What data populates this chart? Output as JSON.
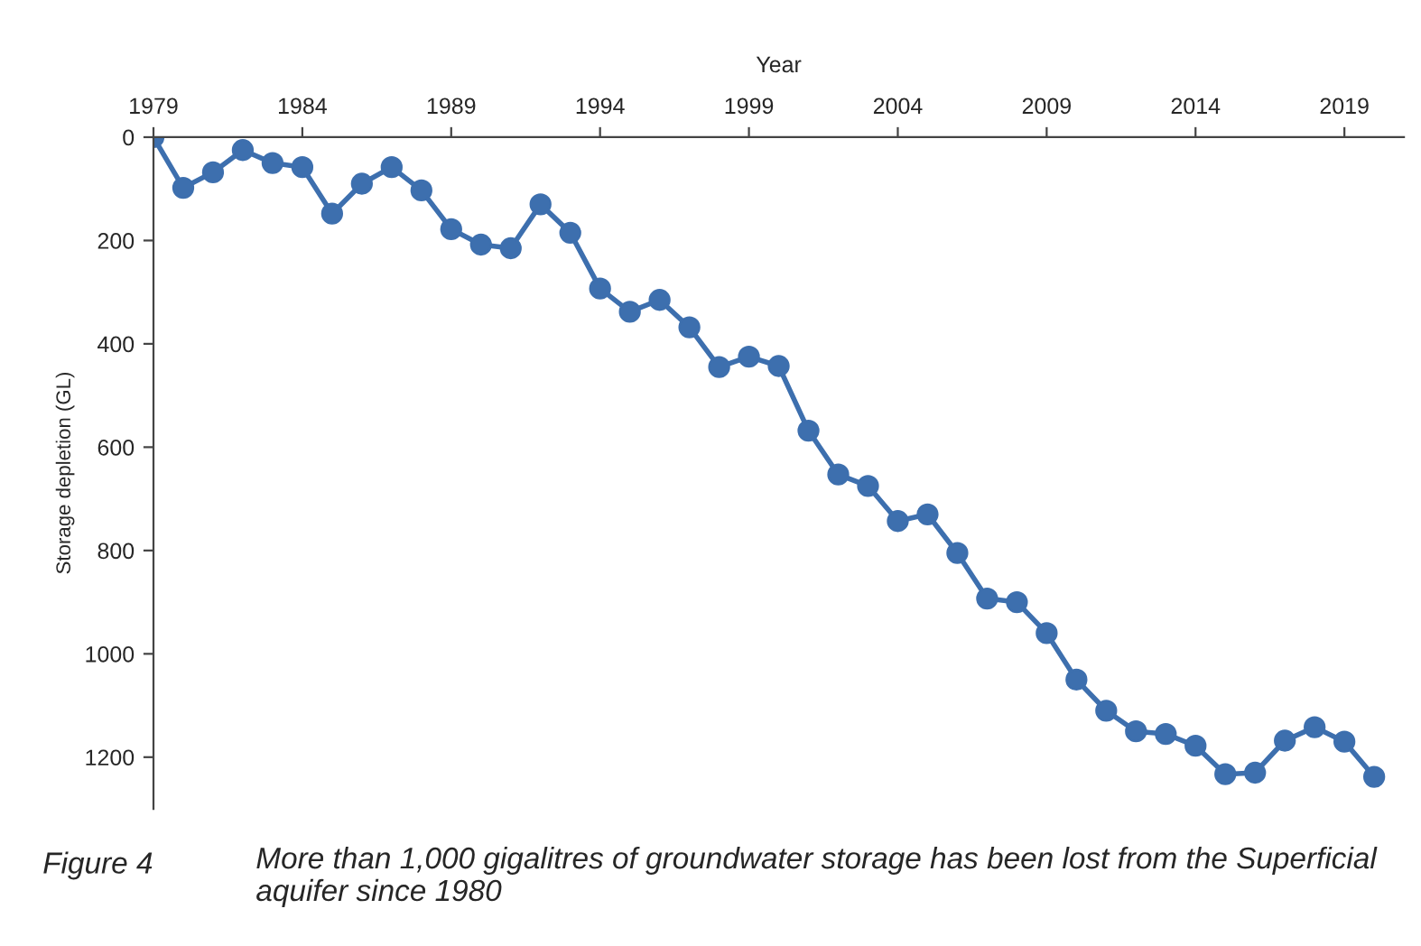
{
  "chart_data": {
    "type": "line",
    "xlabel": "Year",
    "ylabel": "Storage depletion (GL)",
    "x": [
      1979,
      1980,
      1981,
      1982,
      1983,
      1984,
      1985,
      1986,
      1987,
      1988,
      1989,
      1990,
      1991,
      1992,
      1993,
      1994,
      1995,
      1996,
      1997,
      1998,
      1999,
      2000,
      2001,
      2002,
      2003,
      2004,
      2005,
      2006,
      2007,
      2008,
      2009,
      2010,
      2011,
      2012,
      2013,
      2014,
      2015,
      2016,
      2017,
      2018,
      2019,
      2020
    ],
    "series": [
      {
        "color": "#3d6fae",
        "values": [
          0,
          98,
          68,
          25,
          50,
          58,
          148,
          90,
          58,
          103,
          178,
          208,
          215,
          130,
          185,
          293,
          338,
          315,
          368,
          445,
          425,
          443,
          568,
          653,
          675,
          743,
          730,
          805,
          893,
          900,
          960,
          1050,
          1110,
          1150,
          1155,
          1178,
          1233,
          1230,
          1168,
          1142,
          1170,
          1238
        ]
      }
    ],
    "xlim": [
      1979,
      2021
    ],
    "xticks": [
      1979,
      1984,
      1989,
      1994,
      1999,
      2004,
      2009,
      2014,
      2019
    ],
    "ylim": [
      1300,
      0
    ],
    "yticks": [
      0,
      200,
      400,
      600,
      800,
      1000,
      1200
    ],
    "marker": "circle",
    "line_style": "solid",
    "grid": false,
    "legend": false,
    "annotations": [
      "Figure 4",
      "More than 1,000 gigalitres of groundwater storage has been lost from the Superficial aquifer since 1980"
    ]
  }
}
